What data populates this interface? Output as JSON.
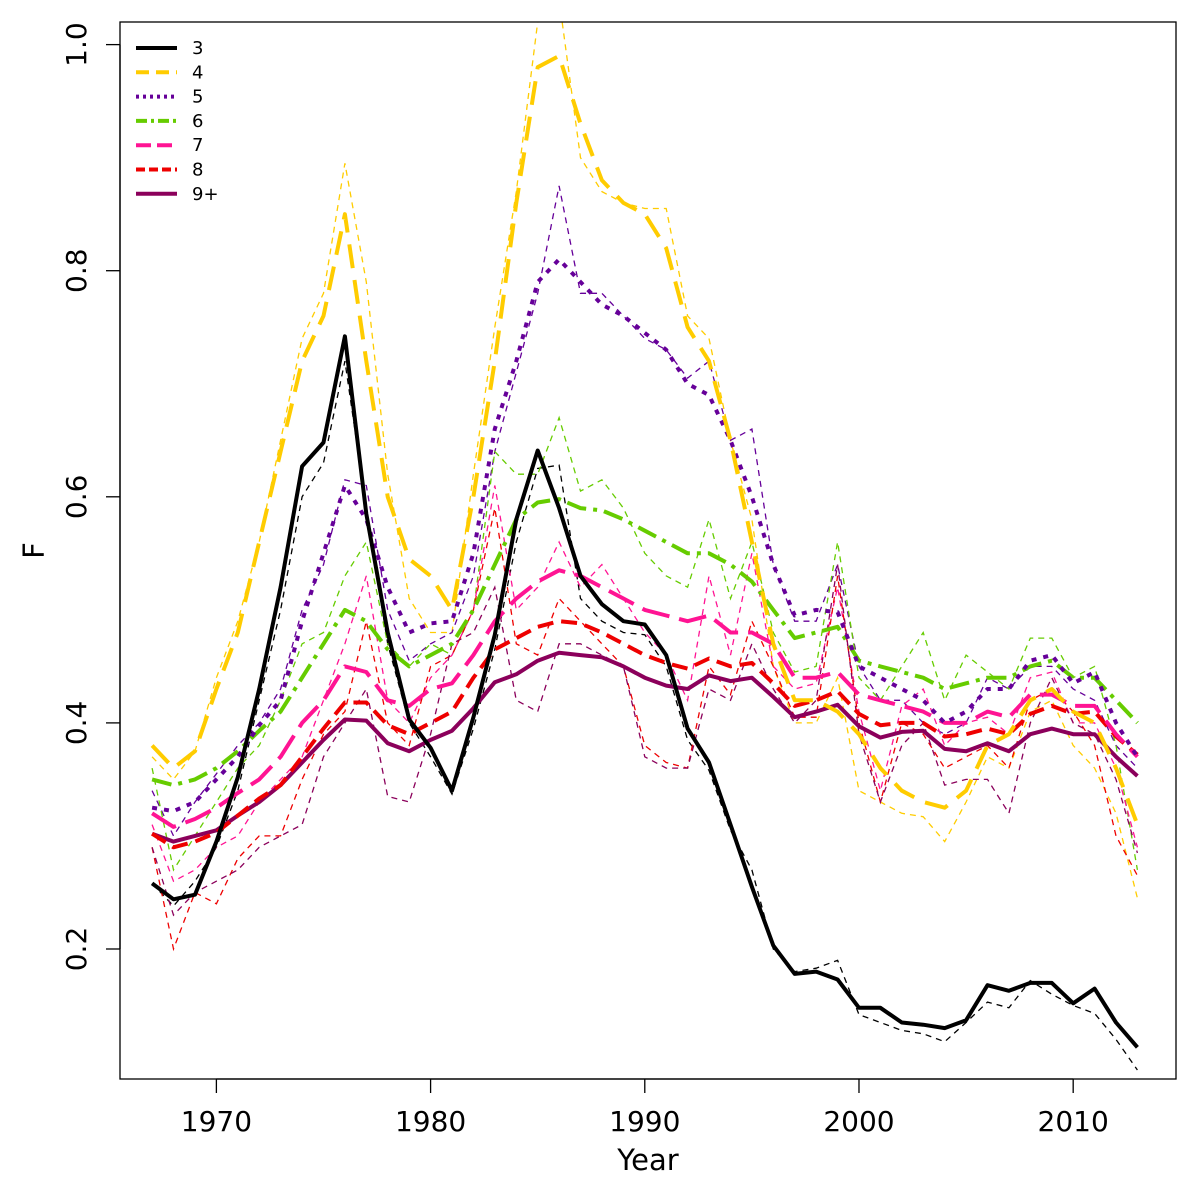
{
  "chart_data": {
    "type": "line",
    "xlabel": "Year",
    "ylabel": "F",
    "xlim": [
      1965.5,
      2014.8
    ],
    "ylim": [
      0.085,
      1.02
    ],
    "x_ticks": [
      1970,
      1980,
      1990,
      2000,
      2010
    ],
    "y_ticks": [
      0.2,
      0.4,
      0.6,
      0.8,
      1.0
    ],
    "y_tick_labels": [
      "0.2",
      "0.4",
      "0.6",
      "0.8",
      "1.0"
    ],
    "legend_position": "top-left",
    "x": [
      1967,
      1968,
      1969,
      1970,
      1971,
      1972,
      1973,
      1974,
      1975,
      1976,
      1977,
      1978,
      1979,
      1980,
      1981,
      1982,
      1983,
      1984,
      1985,
      1986,
      1987,
      1988,
      1989,
      1990,
      1991,
      1992,
      1993,
      1994,
      1995,
      1996,
      1997,
      1998,
      1999,
      2000,
      2001,
      2002,
      2003,
      2004,
      2005,
      2006,
      2007,
      2008,
      2009,
      2010,
      2011,
      2012,
      2013
    ],
    "series": [
      {
        "name": "3",
        "color": "#000000",
        "dash": "solid",
        "values": [
          0.258,
          0.244,
          0.248,
          0.295,
          0.352,
          0.43,
          0.52,
          0.627,
          0.648,
          0.742,
          0.585,
          0.48,
          0.403,
          0.378,
          0.34,
          0.405,
          0.478,
          0.58,
          0.641,
          0.59,
          0.53,
          0.505,
          0.49,
          0.487,
          0.46,
          0.395,
          0.365,
          0.31,
          0.255,
          0.203,
          0.178,
          0.18,
          0.173,
          0.148,
          0.148,
          0.135,
          0.133,
          0.13,
          0.137,
          0.168,
          0.163,
          0.17,
          0.17,
          0.152,
          0.165,
          0.135,
          0.113
        ],
        "alt": [
          0.258,
          0.238,
          0.26,
          0.29,
          0.34,
          0.42,
          0.5,
          0.6,
          0.63,
          0.72,
          0.59,
          0.47,
          0.4,
          0.37,
          0.337,
          0.395,
          0.465,
          0.56,
          0.625,
          0.628,
          0.51,
          0.49,
          0.48,
          0.478,
          0.45,
          0.385,
          0.358,
          0.305,
          0.27,
          0.2,
          0.18,
          0.183,
          0.19,
          0.142,
          0.135,
          0.128,
          0.125,
          0.118,
          0.135,
          0.153,
          0.148,
          0.172,
          0.16,
          0.15,
          0.143,
          0.12,
          0.093
        ]
      },
      {
        "name": "4",
        "color": "#ffcc00",
        "dash": "24 12",
        "values": [
          0.38,
          0.36,
          0.375,
          0.43,
          0.48,
          0.56,
          0.64,
          0.72,
          0.76,
          0.85,
          0.72,
          0.6,
          0.545,
          0.53,
          0.5,
          0.6,
          0.72,
          0.86,
          0.98,
          0.99,
          0.93,
          0.88,
          0.86,
          0.85,
          0.82,
          0.75,
          0.72,
          0.65,
          0.56,
          0.47,
          0.42,
          0.42,
          0.41,
          0.39,
          0.36,
          0.34,
          0.33,
          0.325,
          0.34,
          0.38,
          0.39,
          0.42,
          0.43,
          0.41,
          0.4,
          0.36,
          0.31
        ],
        "alt": [
          0.37,
          0.35,
          0.375,
          0.44,
          0.49,
          0.56,
          0.65,
          0.74,
          0.78,
          0.895,
          0.79,
          0.62,
          0.51,
          0.48,
          0.48,
          0.62,
          0.75,
          0.87,
          1.02,
          1.04,
          0.9,
          0.87,
          0.86,
          0.855,
          0.855,
          0.76,
          0.74,
          0.65,
          0.58,
          0.45,
          0.4,
          0.4,
          0.44,
          0.34,
          0.33,
          0.32,
          0.317,
          0.295,
          0.33,
          0.37,
          0.36,
          0.41,
          0.42,
          0.38,
          0.36,
          0.32,
          0.245
        ]
      },
      {
        "name": "5",
        "color": "#660099",
        "dash": "5 7",
        "values": [
          0.325,
          0.322,
          0.33,
          0.35,
          0.37,
          0.398,
          0.42,
          0.49,
          0.55,
          0.61,
          0.58,
          0.52,
          0.48,
          0.488,
          0.49,
          0.55,
          0.66,
          0.72,
          0.79,
          0.81,
          0.79,
          0.77,
          0.76,
          0.745,
          0.73,
          0.7,
          0.69,
          0.65,
          0.6,
          0.54,
          0.495,
          0.5,
          0.498,
          0.45,
          0.44,
          0.43,
          0.42,
          0.4,
          0.41,
          0.43,
          0.43,
          0.455,
          0.46,
          0.435,
          0.445,
          0.4,
          0.37
        ],
        "alt": [
          0.34,
          0.3,
          0.33,
          0.355,
          0.38,
          0.4,
          0.43,
          0.5,
          0.54,
          0.615,
          0.61,
          0.5,
          0.455,
          0.47,
          0.48,
          0.53,
          0.64,
          0.71,
          0.78,
          0.875,
          0.78,
          0.78,
          0.76,
          0.74,
          0.73,
          0.705,
          0.72,
          0.65,
          0.66,
          0.54,
          0.49,
          0.49,
          0.54,
          0.45,
          0.42,
          0.42,
          0.4,
          0.39,
          0.4,
          0.44,
          0.43,
          0.45,
          0.45,
          0.43,
          0.42,
          0.38,
          0.36
        ]
      },
      {
        "name": "6",
        "color": "#66cc00",
        "dash": "20 7 4 7",
        "values": [
          0.35,
          0.345,
          0.35,
          0.36,
          0.375,
          0.393,
          0.41,
          0.44,
          0.47,
          0.5,
          0.49,
          0.465,
          0.45,
          0.46,
          0.47,
          0.5,
          0.54,
          0.58,
          0.595,
          0.598,
          0.59,
          0.588,
          0.58,
          0.57,
          0.56,
          0.55,
          0.55,
          0.54,
          0.525,
          0.5,
          0.475,
          0.48,
          0.485,
          0.455,
          0.45,
          0.445,
          0.44,
          0.43,
          0.435,
          0.44,
          0.44,
          0.45,
          0.455,
          0.44,
          0.44,
          0.42,
          0.4
        ],
        "alt": [
          0.36,
          0.27,
          0.3,
          0.33,
          0.36,
          0.38,
          0.42,
          0.47,
          0.48,
          0.53,
          0.56,
          0.47,
          0.45,
          0.47,
          0.46,
          0.5,
          0.64,
          0.62,
          0.62,
          0.67,
          0.605,
          0.615,
          0.59,
          0.55,
          0.53,
          0.52,
          0.58,
          0.51,
          0.56,
          0.48,
          0.445,
          0.45,
          0.56,
          0.44,
          0.42,
          0.45,
          0.48,
          0.42,
          0.46,
          0.445,
          0.43,
          0.475,
          0.475,
          0.44,
          0.45,
          0.38,
          0.27
        ]
      },
      {
        "name": "7",
        "color": "#ff1493",
        "dash": "28 10",
        "values": [
          0.32,
          0.308,
          0.315,
          0.325,
          0.338,
          0.35,
          0.37,
          0.4,
          0.42,
          0.45,
          0.445,
          0.42,
          0.415,
          0.43,
          0.435,
          0.46,
          0.49,
          0.51,
          0.525,
          0.535,
          0.53,
          0.52,
          0.51,
          0.5,
          0.495,
          0.49,
          0.495,
          0.48,
          0.48,
          0.47,
          0.44,
          0.44,
          0.445,
          0.425,
          0.42,
          0.415,
          0.41,
          0.4,
          0.4,
          0.41,
          0.405,
          0.425,
          0.425,
          0.415,
          0.415,
          0.39,
          0.37
        ],
        "alt": [
          0.31,
          0.26,
          0.27,
          0.29,
          0.3,
          0.33,
          0.35,
          0.37,
          0.42,
          0.47,
          0.53,
          0.42,
          0.4,
          0.44,
          0.46,
          0.5,
          0.61,
          0.5,
          0.52,
          0.56,
          0.52,
          0.54,
          0.51,
          0.48,
          0.46,
          0.42,
          0.53,
          0.46,
          0.55,
          0.45,
          0.43,
          0.435,
          0.52,
          0.41,
          0.34,
          0.415,
          0.43,
          0.38,
          0.4,
          0.405,
          0.39,
          0.44,
          0.445,
          0.4,
          0.4,
          0.36,
          0.29
        ]
      },
      {
        "name": "8",
        "color": "#ee0000",
        "dash": "16 8",
        "values": [
          0.302,
          0.29,
          0.295,
          0.303,
          0.318,
          0.333,
          0.345,
          0.37,
          0.395,
          0.418,
          0.418,
          0.398,
          0.39,
          0.4,
          0.41,
          0.44,
          0.465,
          0.475,
          0.485,
          0.49,
          0.488,
          0.48,
          0.47,
          0.46,
          0.453,
          0.448,
          0.457,
          0.45,
          0.453,
          0.435,
          0.415,
          0.42,
          0.428,
          0.408,
          0.398,
          0.4,
          0.4,
          0.388,
          0.39,
          0.395,
          0.39,
          0.408,
          0.415,
          0.408,
          0.41,
          0.388,
          0.372
        ],
        "alt": [
          0.29,
          0.2,
          0.25,
          0.24,
          0.28,
          0.3,
          0.3,
          0.35,
          0.39,
          0.41,
          0.49,
          0.4,
          0.38,
          0.45,
          0.46,
          0.5,
          0.59,
          0.47,
          0.46,
          0.51,
          0.49,
          0.47,
          0.45,
          0.38,
          0.365,
          0.36,
          0.45,
          0.425,
          0.49,
          0.45,
          0.405,
          0.405,
          0.53,
          0.4,
          0.33,
          0.4,
          0.39,
          0.36,
          0.37,
          0.38,
          0.36,
          0.42,
          0.43,
          0.41,
          0.38,
          0.3,
          0.265
        ]
      },
      {
        "name": "9+",
        "color": "#8b005b",
        "dash": "solid",
        "values": [
          0.302,
          0.295,
          0.3,
          0.305,
          0.318,
          0.33,
          0.345,
          0.365,
          0.385,
          0.403,
          0.402,
          0.382,
          0.375,
          0.385,
          0.393,
          0.413,
          0.436,
          0.443,
          0.455,
          0.462,
          0.46,
          0.458,
          0.45,
          0.44,
          0.433,
          0.43,
          0.442,
          0.437,
          0.44,
          0.423,
          0.405,
          0.41,
          0.416,
          0.397,
          0.387,
          0.392,
          0.393,
          0.377,
          0.375,
          0.382,
          0.375,
          0.39,
          0.395,
          0.39,
          0.39,
          0.37,
          0.353
        ],
        "alt": [
          0.29,
          0.23,
          0.25,
          0.26,
          0.27,
          0.29,
          0.3,
          0.31,
          0.37,
          0.4,
          0.43,
          0.335,
          0.33,
          0.39,
          0.47,
          0.48,
          0.52,
          0.42,
          0.41,
          0.47,
          0.47,
          0.46,
          0.45,
          0.37,
          0.36,
          0.36,
          0.43,
          0.42,
          0.47,
          0.43,
          0.4,
          0.42,
          0.54,
          0.39,
          0.33,
          0.38,
          0.4,
          0.345,
          0.35,
          0.35,
          0.32,
          0.4,
          0.44,
          0.4,
          0.39,
          0.35,
          0.285
        ]
      }
    ]
  }
}
